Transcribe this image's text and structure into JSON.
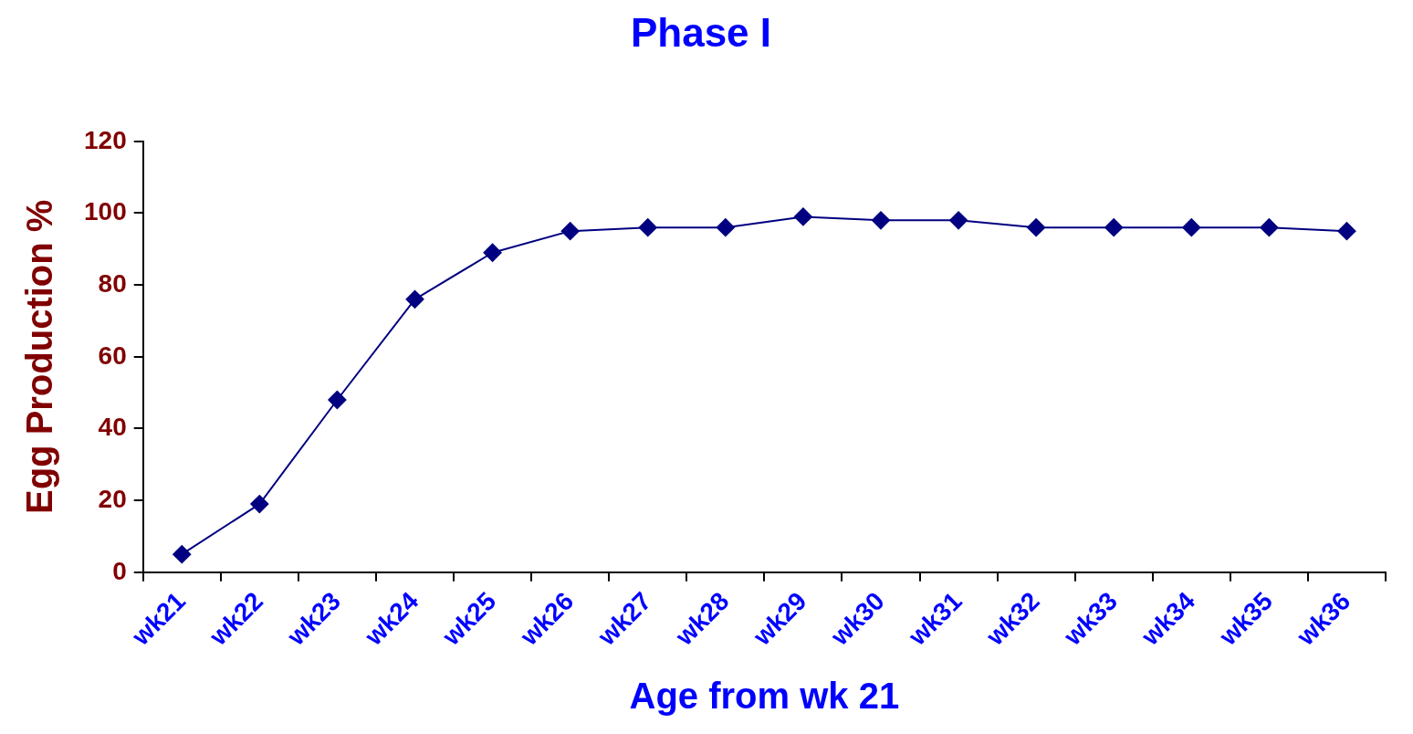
{
  "chart_data": {
    "type": "line",
    "title": "Phase I",
    "xlabel": "Age from wk 21",
    "ylabel": "Egg Production %",
    "categories": [
      "wk21",
      "wk22",
      "wk23",
      "wk24",
      "wk25",
      "wk26",
      "wk27",
      "wk28",
      "wk29",
      "wk30",
      "wk31",
      "wk32",
      "wk33",
      "wk34",
      "wk35",
      "wk36"
    ],
    "series": [
      {
        "color": "#000080",
        "values": [
          5,
          19,
          48,
          76,
          89,
          95,
          96,
          96,
          99,
          98,
          98,
          96,
          96,
          96,
          96,
          95
        ]
      }
    ],
    "ylim": [
      0,
      120
    ],
    "yticks": [
      0,
      20,
      40,
      60,
      80,
      100,
      120
    ],
    "marker": "diamond",
    "line_style": "solid"
  }
}
